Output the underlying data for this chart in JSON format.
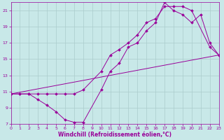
{
  "xlabel": "Windchill (Refroidissement éolien,°C)",
  "bg_color": "#c8e8e8",
  "line_color": "#990099",
  "grid_color": "#aacccc",
  "xlim": [
    0,
    23
  ],
  "ylim": [
    7,
    22
  ],
  "xticks": [
    0,
    1,
    2,
    3,
    4,
    5,
    6,
    7,
    8,
    9,
    10,
    11,
    12,
    13,
    14,
    15,
    16,
    17,
    18,
    19,
    20,
    21,
    22,
    23
  ],
  "yticks": [
    7,
    9,
    11,
    13,
    15,
    17,
    19,
    21
  ],
  "curve1_x": [
    0,
    1,
    2,
    3,
    4,
    5,
    6,
    7,
    8,
    10,
    11,
    12,
    13,
    14,
    15,
    16,
    17,
    18,
    19,
    20,
    21,
    22,
    23
  ],
  "curve1_y": [
    10.7,
    10.7,
    10.7,
    10.0,
    9.3,
    8.5,
    7.5,
    7.2,
    7.2,
    11.2,
    13.5,
    14.5,
    16.5,
    17.0,
    18.5,
    19.5,
    22.0,
    21.0,
    20.5,
    19.5,
    20.5,
    17.0,
    15.5
  ],
  "curve2_x": [
    0,
    1,
    2,
    3,
    4,
    5,
    6,
    7,
    8,
    10,
    11,
    12,
    13,
    14,
    15,
    16,
    17,
    18,
    19,
    20,
    22,
    23
  ],
  "curve2_y": [
    10.7,
    10.7,
    10.7,
    10.7,
    10.7,
    10.7,
    10.7,
    10.7,
    11.2,
    13.5,
    15.5,
    16.2,
    17.0,
    18.0,
    19.5,
    20.0,
    21.5,
    21.5,
    21.5,
    21.0,
    16.5,
    15.5
  ],
  "curve3_x": [
    0,
    23
  ],
  "curve3_y": [
    10.7,
    15.5
  ]
}
